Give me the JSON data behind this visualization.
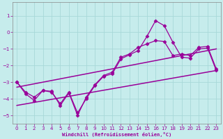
{
  "xlabel": "Windchill (Refroidissement éolien,°C)",
  "xlim": [
    -0.5,
    23.5
  ],
  "ylim": [
    -5.5,
    1.8
  ],
  "yticks": [
    1,
    0,
    -1,
    -2,
    -3,
    -4,
    -5
  ],
  "xticks": [
    0,
    1,
    2,
    3,
    4,
    5,
    6,
    7,
    8,
    9,
    10,
    11,
    12,
    13,
    14,
    15,
    16,
    17,
    18,
    19,
    20,
    21,
    22,
    23
  ],
  "bg_color": "#c6ecec",
  "line_color": "#990099",
  "grid_color": "#a8d8d8",
  "lines": [
    {
      "x": [
        0,
        1,
        2,
        3,
        4,
        5,
        6,
        7,
        8,
        9,
        10,
        11,
        12,
        13,
        14,
        15,
        16,
        17,
        18,
        19,
        20,
        21,
        22,
        23
      ],
      "y": [
        -3.0,
        -3.6,
        -3.9,
        -3.5,
        -3.6,
        -4.3,
        -3.6,
        -4.85,
        -4.0,
        -3.2,
        -2.65,
        -2.5,
        -1.6,
        -1.35,
        -1.1,
        -0.25,
        0.7,
        0.4,
        -0.6,
        -1.5,
        -1.55,
        -1.0,
        -0.95,
        -2.3
      ],
      "marker": "D",
      "markersize": 2.5,
      "linewidth": 0.9,
      "linestyle": "-"
    },
    {
      "x": [
        0,
        1,
        2,
        3,
        4,
        5,
        6,
        7,
        8,
        9,
        10,
        11,
        12,
        13,
        14,
        15,
        16,
        17,
        18,
        19,
        20,
        21,
        22,
        23
      ],
      "y": [
        -3.0,
        -3.7,
        -4.1,
        -3.5,
        -3.55,
        -4.4,
        -3.65,
        -5.0,
        -3.9,
        -3.15,
        -2.6,
        -2.4,
        -1.5,
        -1.3,
        -0.9,
        -0.7,
        -0.5,
        -0.55,
        -1.4,
        -1.3,
        -1.4,
        -0.9,
        -0.85,
        -2.2
      ],
      "marker": "D",
      "markersize": 2.5,
      "linewidth": 0.9,
      "linestyle": "-"
    },
    {
      "x": [
        0,
        23
      ],
      "y": [
        -3.3,
        -1.0
      ],
      "marker": "None",
      "markersize": 0,
      "linewidth": 1.1,
      "linestyle": "-"
    },
    {
      "x": [
        0,
        23
      ],
      "y": [
        -4.4,
        -2.3
      ],
      "marker": "None",
      "markersize": 0,
      "linewidth": 1.1,
      "linestyle": "-"
    }
  ]
}
